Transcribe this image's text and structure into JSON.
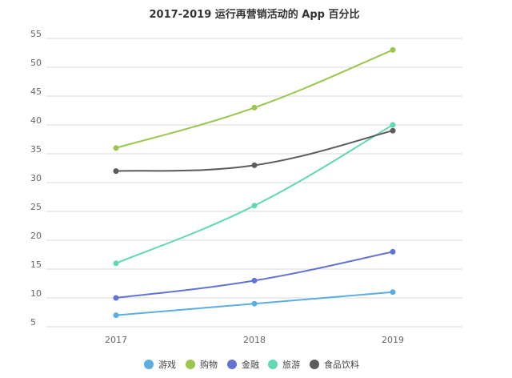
{
  "chart_data": {
    "type": "line",
    "title": "2017-2019 运行再营销活动的 App 百分比",
    "xlabel": "",
    "ylabel": "",
    "categories": [
      "2017",
      "2018",
      "2019"
    ],
    "ylim": [
      5,
      55
    ],
    "yticks": [
      5,
      10,
      15,
      20,
      25,
      30,
      35,
      40,
      45,
      50,
      55
    ],
    "grid": true,
    "legend_position": "bottom",
    "series": [
      {
        "name": "游戏",
        "color": "#5dade2",
        "values": [
          7,
          9,
          11
        ]
      },
      {
        "name": "购物",
        "color": "#9ac64d",
        "values": [
          36,
          43,
          53
        ]
      },
      {
        "name": "金融",
        "color": "#6274d3",
        "values": [
          10,
          13,
          18
        ]
      },
      {
        "name": "旅游",
        "color": "#5fd8b4",
        "values": [
          16,
          26,
          40
        ]
      },
      {
        "name": "食品饮料",
        "color": "#5b5b5b",
        "values": [
          32,
          33,
          39
        ]
      }
    ]
  }
}
